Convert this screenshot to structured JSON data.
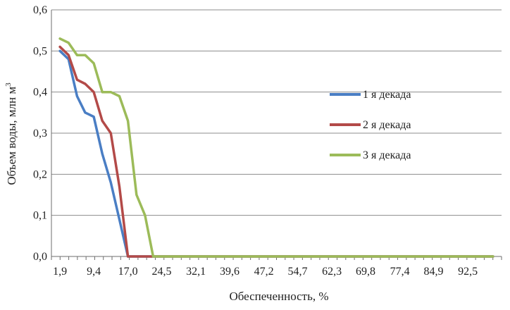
{
  "chart_data": {
    "type": "line",
    "title": "",
    "xlabel": "Обеспеченность, %",
    "ylabel": "Объем воды, млн м",
    "ylabel_superscript": "3",
    "x_tick_labels": [
      "1,9",
      "9,4",
      "17,0",
      "24,5",
      "32,1",
      "39,6",
      "47,2",
      "54,7",
      "62,3",
      "69,8",
      "77,4",
      "84,9",
      "92,5"
    ],
    "y_tick_labels": [
      "0,0",
      "0,1",
      "0,2",
      "0,3",
      "0,4",
      "0,5",
      "0,6"
    ],
    "xlim": [
      0,
      100
    ],
    "ylim": [
      0,
      0.6
    ],
    "grid": "horizontal",
    "legend_position": "right",
    "x": [
      1.9,
      3.8,
      5.7,
      7.5,
      9.4,
      11.3,
      13.2,
      15.1,
      17.0,
      18.9,
      20.8,
      22.6,
      24.5,
      26.4,
      28.3,
      30.2,
      32.1,
      34.0,
      35.8,
      37.7,
      39.6,
      41.5,
      43.4,
      45.3,
      47.2,
      49.1,
      50.9,
      52.8,
      54.7,
      56.6,
      58.5,
      60.4,
      62.3,
      64.2,
      66.0,
      67.9,
      69.8,
      71.7,
      73.6,
      75.5,
      77.4,
      79.2,
      81.1,
      83.0,
      84.9,
      86.8,
      88.7,
      90.6,
      92.5,
      94.3,
      96.2,
      98.1
    ],
    "series": [
      {
        "name": "1 я декада",
        "color": "#4a7ec4",
        "values": [
          0.5,
          0.48,
          0.39,
          0.35,
          0.34,
          0.25,
          0.18,
          0.09,
          0.0,
          0.0,
          0.0,
          0.0,
          0.0,
          0.0,
          0.0,
          0.0,
          0.0,
          0.0,
          0.0,
          0.0,
          0.0,
          0.0,
          0.0,
          0.0,
          0.0,
          0.0,
          0.0,
          0.0,
          0.0,
          0.0,
          0.0,
          0.0,
          0.0,
          0.0,
          0.0,
          0.0,
          0.0,
          0.0,
          0.0,
          0.0,
          0.0,
          0.0,
          0.0,
          0.0,
          0.0,
          0.0,
          0.0,
          0.0,
          0.0,
          0.0,
          0.0,
          0.0
        ]
      },
      {
        "name": "2 я декада",
        "color": "#b34a48",
        "values": [
          0.51,
          0.49,
          0.43,
          0.42,
          0.4,
          0.33,
          0.3,
          0.17,
          0.0,
          0.0,
          0.0,
          0.0,
          0.0,
          0.0,
          0.0,
          0.0,
          0.0,
          0.0,
          0.0,
          0.0,
          0.0,
          0.0,
          0.0,
          0.0,
          0.0,
          0.0,
          0.0,
          0.0,
          0.0,
          0.0,
          0.0,
          0.0,
          0.0,
          0.0,
          0.0,
          0.0,
          0.0,
          0.0,
          0.0,
          0.0,
          0.0,
          0.0,
          0.0,
          0.0,
          0.0,
          0.0,
          0.0,
          0.0,
          0.0,
          0.0,
          0.0,
          0.0
        ]
      },
      {
        "name": "3 я декада",
        "color": "#9cbb59",
        "values": [
          0.53,
          0.52,
          0.49,
          0.49,
          0.47,
          0.4,
          0.4,
          0.39,
          0.33,
          0.15,
          0.1,
          0.0,
          0.0,
          0.0,
          0.0,
          0.0,
          0.0,
          0.0,
          0.0,
          0.0,
          0.0,
          0.0,
          0.0,
          0.0,
          0.0,
          0.0,
          0.0,
          0.0,
          0.0,
          0.0,
          0.0,
          0.0,
          0.0,
          0.0,
          0.0,
          0.0,
          0.0,
          0.0,
          0.0,
          0.0,
          0.0,
          0.0,
          0.0,
          0.0,
          0.0,
          0.0,
          0.0,
          0.0,
          0.0,
          0.0,
          0.0,
          0.0
        ]
      }
    ]
  }
}
